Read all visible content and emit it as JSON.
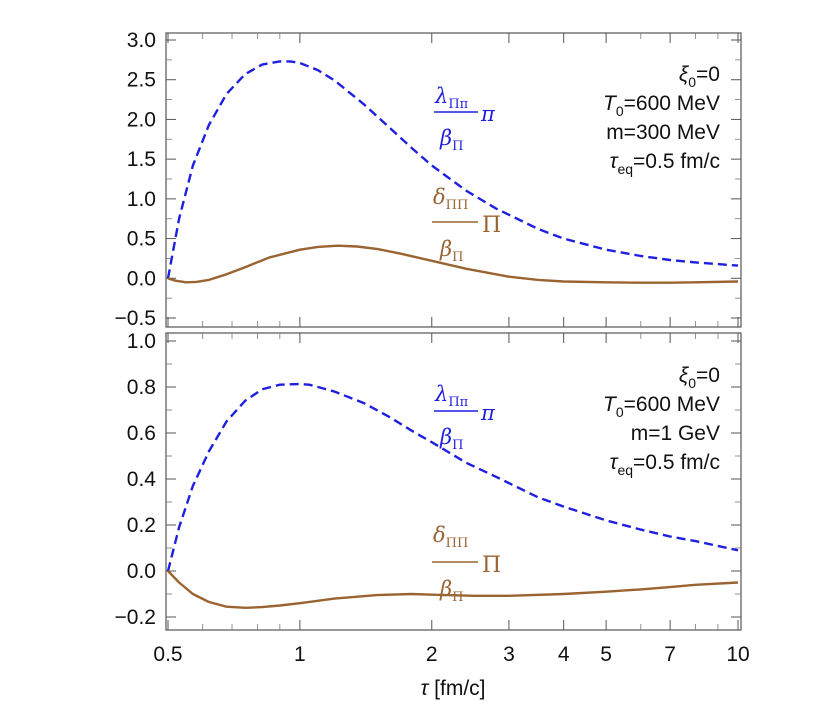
{
  "colors": {
    "blue": "#1f1fe0",
    "brown": "#9a6432",
    "axis": "#555555",
    "text": "#111111"
  },
  "xlabel": {
    "sym": "τ",
    "unit": " [fm/c]"
  },
  "chart_data": [
    {
      "type": "line",
      "x_scale": "log",
      "xlim": [
        0.5,
        10
      ],
      "ylim": [
        -0.6,
        3.05
      ],
      "yticks": [
        "3.0",
        "2.5",
        "2.0",
        "1.5",
        "1.0",
        "0.5",
        "0.0",
        "-0.5"
      ],
      "ytick_values": [
        3.0,
        2.5,
        2.0,
        1.5,
        1.0,
        0.5,
        0.0,
        -0.5
      ],
      "annotation": {
        "line1": {
          "sym": "ξ",
          "sub": "0",
          "rest": "=0"
        },
        "line2": {
          "sym": "T",
          "sub": "0",
          "rest": "=600 MeV"
        },
        "line3": "m=300 MeV",
        "line4": {
          "sym": "τ",
          "sub": "eq",
          "rest": "=0.5 fm/c"
        }
      },
      "series": [
        {
          "name": "lambda",
          "label": {
            "num": "λ",
            "num_sub": "Ππ",
            "den": "β",
            "den_sub": "Π",
            "tail": "π"
          },
          "style": "dashed",
          "color": "#1f1fe0",
          "x": [
            0.5,
            0.53,
            0.57,
            0.62,
            0.68,
            0.75,
            0.82,
            0.9,
            0.95,
            1.0,
            1.1,
            1.2,
            1.4,
            1.6,
            1.8,
            2.0,
            2.4,
            2.8,
            3.5,
            4.0,
            5.0,
            6.0,
            7.0,
            8.0,
            10.0
          ],
          "y": [
            0.0,
            0.75,
            1.42,
            1.93,
            2.32,
            2.57,
            2.69,
            2.73,
            2.73,
            2.71,
            2.62,
            2.49,
            2.19,
            1.9,
            1.64,
            1.42,
            1.1,
            0.88,
            0.62,
            0.5,
            0.36,
            0.28,
            0.23,
            0.2,
            0.16
          ]
        },
        {
          "name": "delta",
          "label": {
            "num": "δ",
            "num_sub": "ΠΠ",
            "den": "β",
            "den_sub": "Π",
            "tail": "Π"
          },
          "style": "solid",
          "color": "#9a6432",
          "x": [
            0.5,
            0.52,
            0.55,
            0.58,
            0.62,
            0.68,
            0.75,
            0.85,
            1.0,
            1.1,
            1.22,
            1.35,
            1.5,
            1.7,
            2.0,
            2.4,
            3.0,
            3.5,
            4.0,
            5.0,
            6.0,
            7.0,
            8.0,
            10.0
          ],
          "y": [
            0.0,
            -0.03,
            -0.05,
            -0.045,
            -0.02,
            0.05,
            0.14,
            0.26,
            0.36,
            0.395,
            0.41,
            0.4,
            0.37,
            0.31,
            0.22,
            0.12,
            0.02,
            -0.02,
            -0.04,
            -0.05,
            -0.055,
            -0.055,
            -0.05,
            -0.04
          ]
        }
      ]
    },
    {
      "type": "line",
      "x_scale": "log",
      "xlim": [
        0.5,
        10
      ],
      "ylim": [
        -0.23,
        1.05
      ],
      "yticks": [
        "1.0",
        "0.8",
        "0.6",
        "0.4",
        "0.2",
        "0.0",
        "-0.2"
      ],
      "ytick_values": [
        1.0,
        0.8,
        0.6,
        0.4,
        0.2,
        0.0,
        -0.2
      ],
      "xticks": [
        "0.5",
        "1",
        "2",
        "3",
        "4",
        "5",
        "7",
        "10"
      ],
      "xtick_values": [
        0.5,
        1,
        2,
        3,
        4,
        5,
        7,
        10
      ],
      "annotation": {
        "line1": {
          "sym": "ξ",
          "sub": "0",
          "rest": "=0"
        },
        "line2": {
          "sym": "T",
          "sub": "0",
          "rest": "=600 MeV"
        },
        "line3": "m=1 GeV",
        "line4": {
          "sym": "τ",
          "sub": "eq",
          "rest": "=0.5 fm/c"
        }
      },
      "series": [
        {
          "name": "lambda",
          "label": {
            "num": "λ",
            "num_sub": "Ππ",
            "den": "β",
            "den_sub": "Π",
            "tail": "π"
          },
          "style": "dashed",
          "color": "#1f1fe0",
          "x": [
            0.5,
            0.53,
            0.57,
            0.62,
            0.68,
            0.75,
            0.82,
            0.9,
            1.0,
            1.05,
            1.1,
            1.2,
            1.4,
            1.6,
            1.8,
            2.0,
            2.4,
            2.8,
            3.5,
            4.0,
            5.0,
            6.0,
            7.0,
            8.0,
            10.0
          ],
          "y": [
            0.0,
            0.19,
            0.37,
            0.52,
            0.65,
            0.74,
            0.79,
            0.81,
            0.813,
            0.81,
            0.8,
            0.78,
            0.73,
            0.67,
            0.61,
            0.56,
            0.47,
            0.41,
            0.32,
            0.28,
            0.22,
            0.18,
            0.15,
            0.13,
            0.09
          ]
        },
        {
          "name": "delta",
          "label": {
            "num": "δ",
            "num_sub": "ΠΠ",
            "den": "β",
            "den_sub": "Π",
            "tail": "Π"
          },
          "style": "solid",
          "color": "#9a6432",
          "x": [
            0.5,
            0.53,
            0.57,
            0.62,
            0.68,
            0.75,
            0.82,
            0.9,
            1.0,
            1.2,
            1.5,
            1.8,
            2.0,
            2.5,
            3.0,
            4.0,
            5.0,
            6.0,
            7.0,
            8.0,
            10.0
          ],
          "y": [
            0.0,
            -0.05,
            -0.1,
            -0.135,
            -0.155,
            -0.16,
            -0.157,
            -0.15,
            -0.14,
            -0.12,
            -0.105,
            -0.1,
            -0.103,
            -0.108,
            -0.108,
            -0.1,
            -0.09,
            -0.08,
            -0.07,
            -0.06,
            -0.05
          ]
        }
      ]
    }
  ]
}
